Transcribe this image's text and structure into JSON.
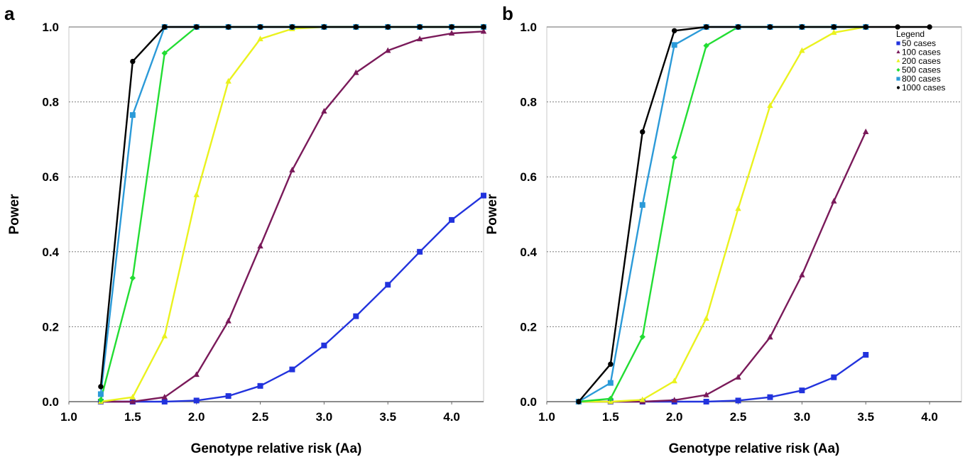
{
  "chart_data": [
    {
      "panel": "a",
      "type": "line",
      "xlabel": "Genotype relative risk (Aa)",
      "ylabel": "Power",
      "xlim": [
        1.0,
        4.25
      ],
      "ylim": [
        0.0,
        1.0
      ],
      "xticks": [
        "1.0",
        "1.5",
        "2.0",
        "2.5",
        "3.0",
        "3.5",
        "4.0"
      ],
      "yticks": [
        "0.0",
        "0.2",
        "0.4",
        "0.6",
        "0.8",
        "1.0"
      ],
      "grid": "horizontal dotted",
      "legend": "none",
      "series": [
        {
          "color": "#2233dd",
          "marker": "square",
          "x": [
            1.25,
            1.5,
            1.75,
            2.0,
            2.25,
            2.5,
            2.75,
            3.0,
            3.25,
            3.5,
            3.75,
            4.0,
            4.25
          ],
          "y": [
            0.0,
            0.0,
            0.0,
            0.003,
            0.015,
            0.042,
            0.086,
            0.15,
            0.228,
            0.312,
            0.4,
            0.485,
            0.55
          ]
        },
        {
          "color": "#7a1a5a",
          "marker": "triangle",
          "x": [
            1.25,
            1.5,
            1.75,
            2.0,
            2.25,
            2.5,
            2.75,
            3.0,
            3.25,
            3.5,
            3.75,
            4.0,
            4.25
          ],
          "y": [
            0.0,
            0.0,
            0.012,
            0.072,
            0.215,
            0.415,
            0.618,
            0.775,
            0.878,
            0.937,
            0.968,
            0.983,
            0.988
          ]
        },
        {
          "color": "#eaf21e",
          "marker": "triangle",
          "x": [
            1.25,
            1.5,
            1.75,
            2.0,
            2.25,
            2.5,
            2.75,
            3.0,
            3.25,
            3.5,
            3.75,
            4.0,
            4.25
          ],
          "y": [
            0.0,
            0.012,
            0.175,
            0.552,
            0.855,
            0.968,
            0.995,
            1.0,
            1.0,
            1.0,
            1.0,
            1.0,
            1.0
          ]
        },
        {
          "color": "#22dd33",
          "marker": "diamond",
          "x": [
            1.25,
            1.5,
            1.75,
            2.0,
            2.25,
            2.5,
            2.75,
            3.0,
            3.25,
            3.5,
            3.75,
            4.0,
            4.25
          ],
          "y": [
            0.005,
            0.33,
            0.93,
            1.0,
            1.0,
            1.0,
            1.0,
            1.0,
            1.0,
            1.0,
            1.0,
            1.0,
            1.0
          ]
        },
        {
          "color": "#2b9ad8",
          "marker": "square",
          "x": [
            1.25,
            1.5,
            1.75,
            2.0,
            2.25,
            2.5,
            2.75,
            3.0,
            3.25,
            3.5,
            3.75,
            4.0,
            4.25
          ],
          "y": [
            0.02,
            0.765,
            1.0,
            1.0,
            1.0,
            1.0,
            1.0,
            1.0,
            1.0,
            1.0,
            1.0,
            1.0,
            1.0
          ]
        },
        {
          "color": "#000000",
          "marker": "circle",
          "x": [
            1.25,
            1.5,
            1.75,
            2.0,
            2.25,
            2.5,
            2.75,
            3.0,
            3.25,
            3.5,
            3.75,
            4.0,
            4.25
          ],
          "y": [
            0.04,
            0.908,
            1.0,
            1.0,
            1.0,
            1.0,
            1.0,
            1.0,
            1.0,
            1.0,
            1.0,
            1.0,
            1.0
          ]
        }
      ]
    },
    {
      "panel": "b",
      "type": "line",
      "xlabel": "Genotype relative risk (Aa)",
      "ylabel": "Power",
      "xlim": [
        1.0,
        4.25
      ],
      "ylim": [
        0.0,
        1.0
      ],
      "xticks": [
        "1.0",
        "1.5",
        "2.0",
        "2.5",
        "3.0",
        "3.5",
        "4.0"
      ],
      "yticks": [
        "0.0",
        "0.2",
        "0.4",
        "0.6",
        "0.8",
        "1.0"
      ],
      "grid": "horizontal dotted",
      "legend": "top-right",
      "legend_title": "Legend",
      "series": [
        {
          "name": "50 cases",
          "color": "#2233dd",
          "marker": "square",
          "x": [
            1.25,
            1.5,
            1.75,
            2.0,
            2.25,
            2.5,
            2.75,
            3.0,
            3.25,
            3.5
          ],
          "y": [
            0.0,
            0.0,
            0.0,
            0.0,
            0.0,
            0.003,
            0.012,
            0.03,
            0.065,
            0.125
          ]
        },
        {
          "name": "100 cases",
          "color": "#7a1a5a",
          "marker": "triangle",
          "x": [
            1.25,
            1.5,
            1.75,
            2.0,
            2.25,
            2.5,
            2.75,
            3.0,
            3.25,
            3.5
          ],
          "y": [
            0.0,
            0.0,
            0.0,
            0.004,
            0.018,
            0.065,
            0.172,
            0.338,
            0.535,
            0.72
          ]
        },
        {
          "name": "200 cases",
          "color": "#eaf21e",
          "marker": "triangle",
          "x": [
            1.25,
            1.5,
            1.75,
            2.0,
            2.25,
            2.5,
            2.75,
            3.0,
            3.25,
            3.5
          ],
          "y": [
            0.0,
            0.0,
            0.005,
            0.055,
            0.222,
            0.515,
            0.79,
            0.937,
            0.985,
            1.0
          ]
        },
        {
          "name": "500 cases",
          "color": "#22dd33",
          "marker": "diamond",
          "x": [
            1.25,
            1.5,
            1.75,
            2.0,
            2.25,
            2.5,
            2.75,
            3.0,
            3.25,
            3.5
          ],
          "y": [
            0.0,
            0.008,
            0.173,
            0.652,
            0.95,
            1.0,
            1.0,
            1.0,
            1.0,
            1.0
          ]
        },
        {
          "name": "800 cases",
          "color": "#2b9ad8",
          "marker": "square",
          "x": [
            1.25,
            1.5,
            1.75,
            2.0,
            2.25,
            2.5,
            2.75,
            3.0,
            3.25,
            3.5
          ],
          "y": [
            0.0,
            0.05,
            0.525,
            0.952,
            1.0,
            1.0,
            1.0,
            1.0,
            1.0,
            1.0
          ]
        },
        {
          "name": "1000 cases",
          "color": "#000000",
          "marker": "circle",
          "x": [
            1.25,
            1.5,
            1.75,
            2.0,
            2.25,
            2.5,
            2.75,
            3.0,
            3.25,
            3.5,
            3.75,
            4.0
          ],
          "y": [
            0.0,
            0.1,
            0.72,
            0.99,
            1.0,
            1.0,
            1.0,
            1.0,
            1.0,
            1.0,
            1.0,
            1.0
          ]
        }
      ]
    }
  ]
}
